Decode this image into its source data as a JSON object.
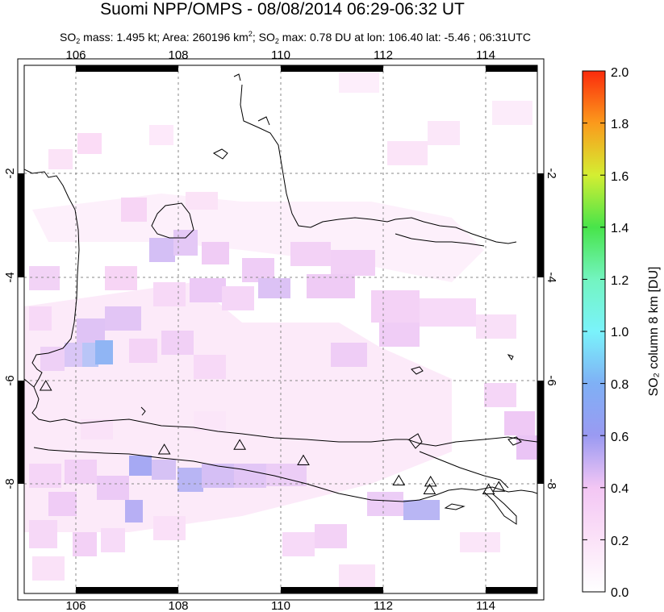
{
  "header": {
    "title": "Suomi NPP/OMPS - 08/08/2014 06:29-06:32 UT",
    "subtitle_pre": "SO",
    "subtitle_sub1": "2",
    "subtitle_mid1": " mass: 1.495 kt; Area: 260196 km",
    "subtitle_sup": "2",
    "subtitle_mid2": "; SO",
    "subtitle_sub2": "2",
    "subtitle_post": " max: 0.78 DU at lon: 106.40 lat: -5.46 ; 06:31UTC"
  },
  "map": {
    "lon_ticks": [
      "106",
      "108",
      "110",
      "112",
      "114"
    ],
    "lat_ticks": [
      "-2",
      "-4",
      "-6",
      "-8"
    ],
    "lon_range": [
      105,
      115
    ],
    "lat_range": [
      -10.1,
      0.1
    ],
    "volcano_marker": "triangle-icon",
    "volcanoes": [
      {
        "lon": 105.42,
        "lat": -6.1
      },
      {
        "lon": 107.73,
        "lat": -7.33
      },
      {
        "lon": 109.2,
        "lat": -7.24
      },
      {
        "lon": 110.44,
        "lat": -7.54
      },
      {
        "lon": 112.3,
        "lat": -7.93
      },
      {
        "lon": 112.92,
        "lat": -7.95
      },
      {
        "lon": 112.9,
        "lat": -8.1
      },
      {
        "lon": 114.05,
        "lat": -8.1
      },
      {
        "lon": 114.25,
        "lat": -8.05
      }
    ]
  },
  "colorbar": {
    "label": "SO₂ column 8 km [DU]",
    "ticks": [
      "0.0",
      "0.2",
      "0.4",
      "0.6",
      "0.8",
      "1.0",
      "1.2",
      "1.4",
      "1.6",
      "1.8",
      "2.0"
    ],
    "range": [
      0,
      2
    ]
  }
}
